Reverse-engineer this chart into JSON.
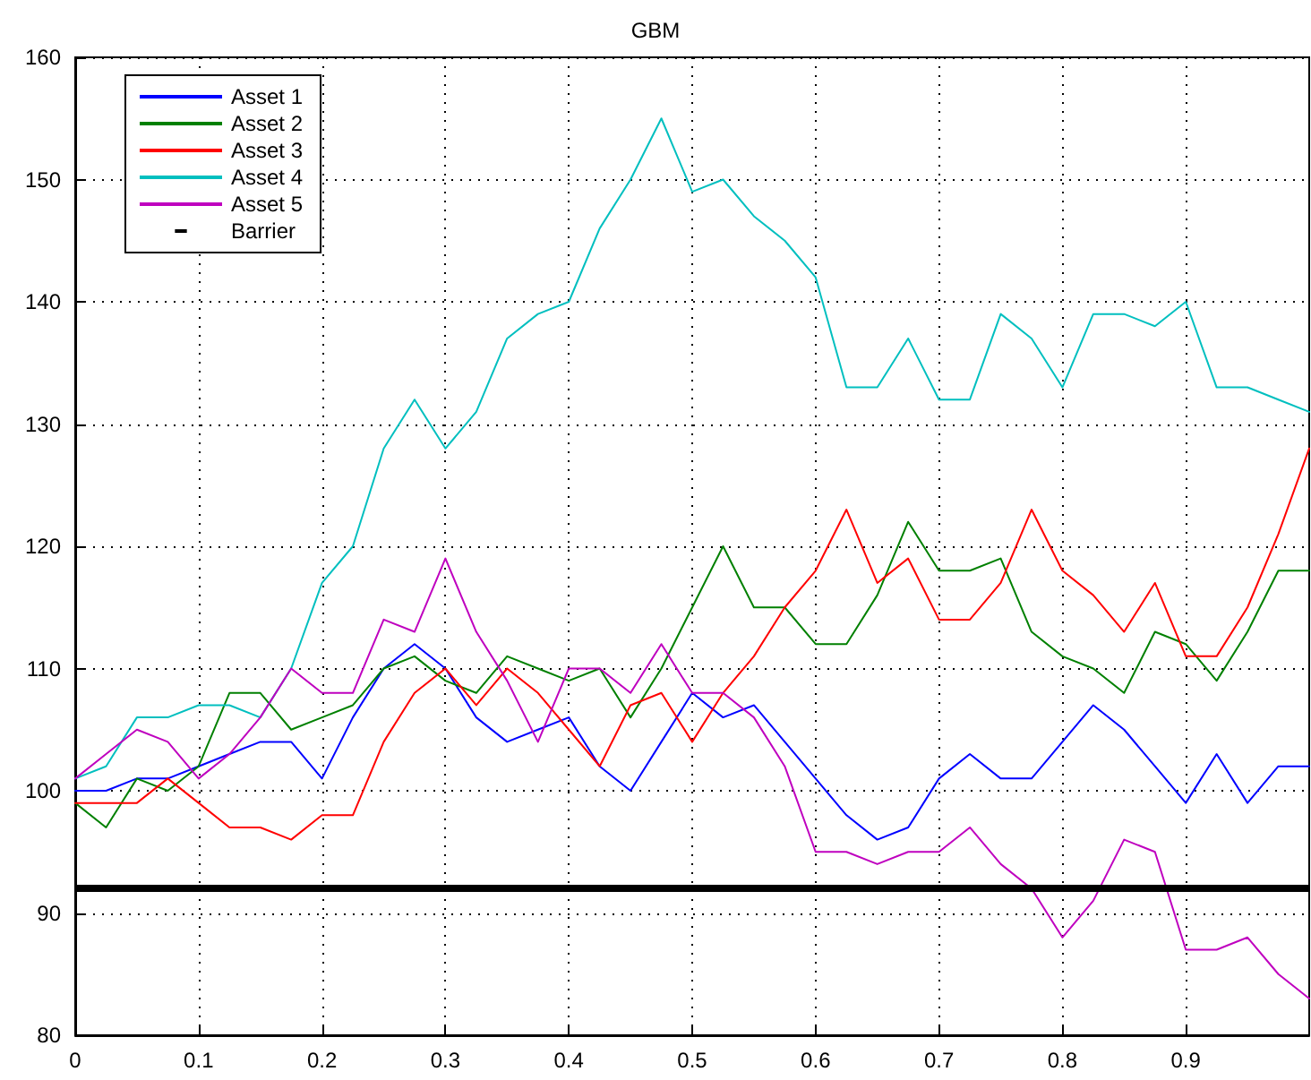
{
  "chart_data": {
    "type": "line",
    "title": "GBM",
    "x": [
      0,
      0.025,
      0.05,
      0.075,
      0.1,
      0.125,
      0.15,
      0.175,
      0.2,
      0.225,
      0.25,
      0.275,
      0.3,
      0.325,
      0.35,
      0.375,
      0.4,
      0.425,
      0.45,
      0.475,
      0.5,
      0.525,
      0.55,
      0.575,
      0.6,
      0.625,
      0.65,
      0.675,
      0.7,
      0.725,
      0.75,
      0.775,
      0.8,
      0.825,
      0.85,
      0.875,
      0.9,
      0.925,
      0.95,
      0.975,
      1
    ],
    "series": [
      {
        "name": "Asset 1",
        "color": "#0000ff",
        "values": [
          100,
          100,
          101,
          101,
          102,
          103,
          104,
          104,
          101,
          106,
          110,
          112,
          110,
          106,
          104,
          105,
          106,
          102,
          100,
          104,
          108,
          106,
          107,
          104,
          101,
          98,
          96,
          97,
          101,
          103,
          101,
          101,
          104,
          107,
          105,
          102,
          99,
          103,
          99,
          102,
          102
        ]
      },
      {
        "name": "Asset 2",
        "color": "#008000",
        "values": [
          99,
          97,
          101,
          100,
          102,
          108,
          108,
          105,
          106,
          107,
          110,
          111,
          109,
          108,
          111,
          110,
          109,
          110,
          106,
          110,
          115,
          120,
          115,
          115,
          112,
          112,
          116,
          122,
          118,
          118,
          119,
          113,
          111,
          110,
          108,
          113,
          112,
          109,
          113,
          118,
          118
        ]
      },
      {
        "name": "Asset 3",
        "color": "#ff0000",
        "values": [
          99,
          99,
          99,
          101,
          99,
          97,
          97,
          96,
          98,
          98,
          104,
          108,
          110,
          107,
          110,
          108,
          105,
          102,
          107,
          108,
          104,
          108,
          111,
          115,
          118,
          123,
          117,
          119,
          114,
          114,
          117,
          123,
          118,
          116,
          113,
          117,
          111,
          111,
          115,
          121,
          128
        ]
      },
      {
        "name": "Asset 4",
        "color": "#00bfbf",
        "values": [
          101,
          102,
          106,
          106,
          107,
          107,
          106,
          110,
          117,
          120,
          128,
          132,
          128,
          131,
          137,
          139,
          140,
          146,
          150,
          155,
          149,
          150,
          147,
          145,
          142,
          133,
          133,
          137,
          132,
          132,
          139,
          137,
          133,
          139,
          139,
          138,
          140,
          133,
          133,
          132,
          131
        ]
      },
      {
        "name": "Asset 5",
        "color": "#bf00bf",
        "values": [
          101,
          103,
          105,
          104,
          101,
          103,
          106,
          110,
          108,
          108,
          114,
          113,
          119,
          113,
          109,
          104,
          110,
          110,
          108,
          112,
          108,
          108,
          106,
          102,
          95,
          95,
          94,
          95,
          95,
          97,
          94,
          92,
          88,
          91,
          96,
          95,
          87,
          87,
          88,
          85,
          83
        ]
      }
    ],
    "ref_lines": [
      {
        "axis": "y",
        "value": 92,
        "label": "Barrier",
        "color": "#000000"
      }
    ],
    "xlim": [
      0,
      1
    ],
    "xticks": [
      0,
      0.1,
      0.2,
      0.3,
      0.4,
      0.5,
      0.6,
      0.7,
      0.8,
      0.9
    ],
    "ylim": [
      80,
      160
    ],
    "yticks": [
      80,
      90,
      100,
      110,
      120,
      130,
      140,
      150,
      160
    ],
    "grid": true,
    "legend": "top left",
    "marker": "none",
    "line_style": "solid"
  }
}
